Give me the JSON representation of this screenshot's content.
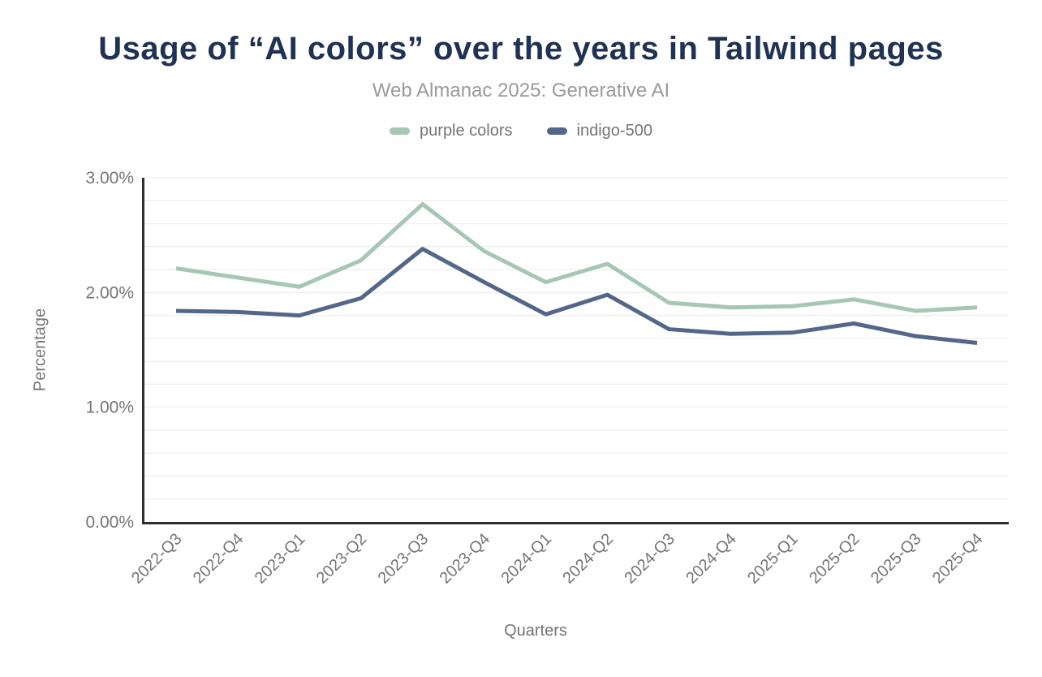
{
  "colors": {
    "title_text": "#1f3254",
    "subtitle_text": "#9a9a9a",
    "axis_text": "#757575",
    "axis_line": "#2f2f2f",
    "gridline": "#f0f0f0",
    "background": "#ffffff"
  },
  "chart_data": {
    "type": "line",
    "title": "Usage of “AI colors” over the years in Tailwind pages",
    "subtitle": "Web Almanac 2025: Generative AI",
    "xlabel": "Quarters",
    "ylabel": "Percentage",
    "legend_position": "top",
    "grid": "on",
    "minor_grid_step": 0.2,
    "ylim": [
      0,
      3
    ],
    "ytick_values": [
      0,
      1,
      2,
      3
    ],
    "ytick_labels": [
      "0.00%",
      "1.00%",
      "2.00%",
      "3.00%"
    ],
    "categories": [
      "2022-Q3",
      "2022-Q4",
      "2023-Q1",
      "2023-Q2",
      "2023-Q3",
      "2023-Q4",
      "2024-Q1",
      "2024-Q2",
      "2024-Q3",
      "2024-Q4",
      "2025-Q1",
      "2025-Q2",
      "2025-Q3",
      "2025-Q4"
    ],
    "series": [
      {
        "name": "purple colors",
        "color": "#a6c7b3",
        "values": [
          2.21,
          2.13,
          2.05,
          2.28,
          2.77,
          2.36,
          2.09,
          2.25,
          1.91,
          1.87,
          1.88,
          1.94,
          1.84,
          1.87
        ]
      },
      {
        "name": "indigo-500",
        "color": "#53678a",
        "values": [
          1.84,
          1.83,
          1.8,
          1.95,
          2.38,
          2.09,
          1.81,
          1.98,
          1.68,
          1.64,
          1.65,
          1.73,
          1.62,
          1.56
        ]
      }
    ]
  }
}
